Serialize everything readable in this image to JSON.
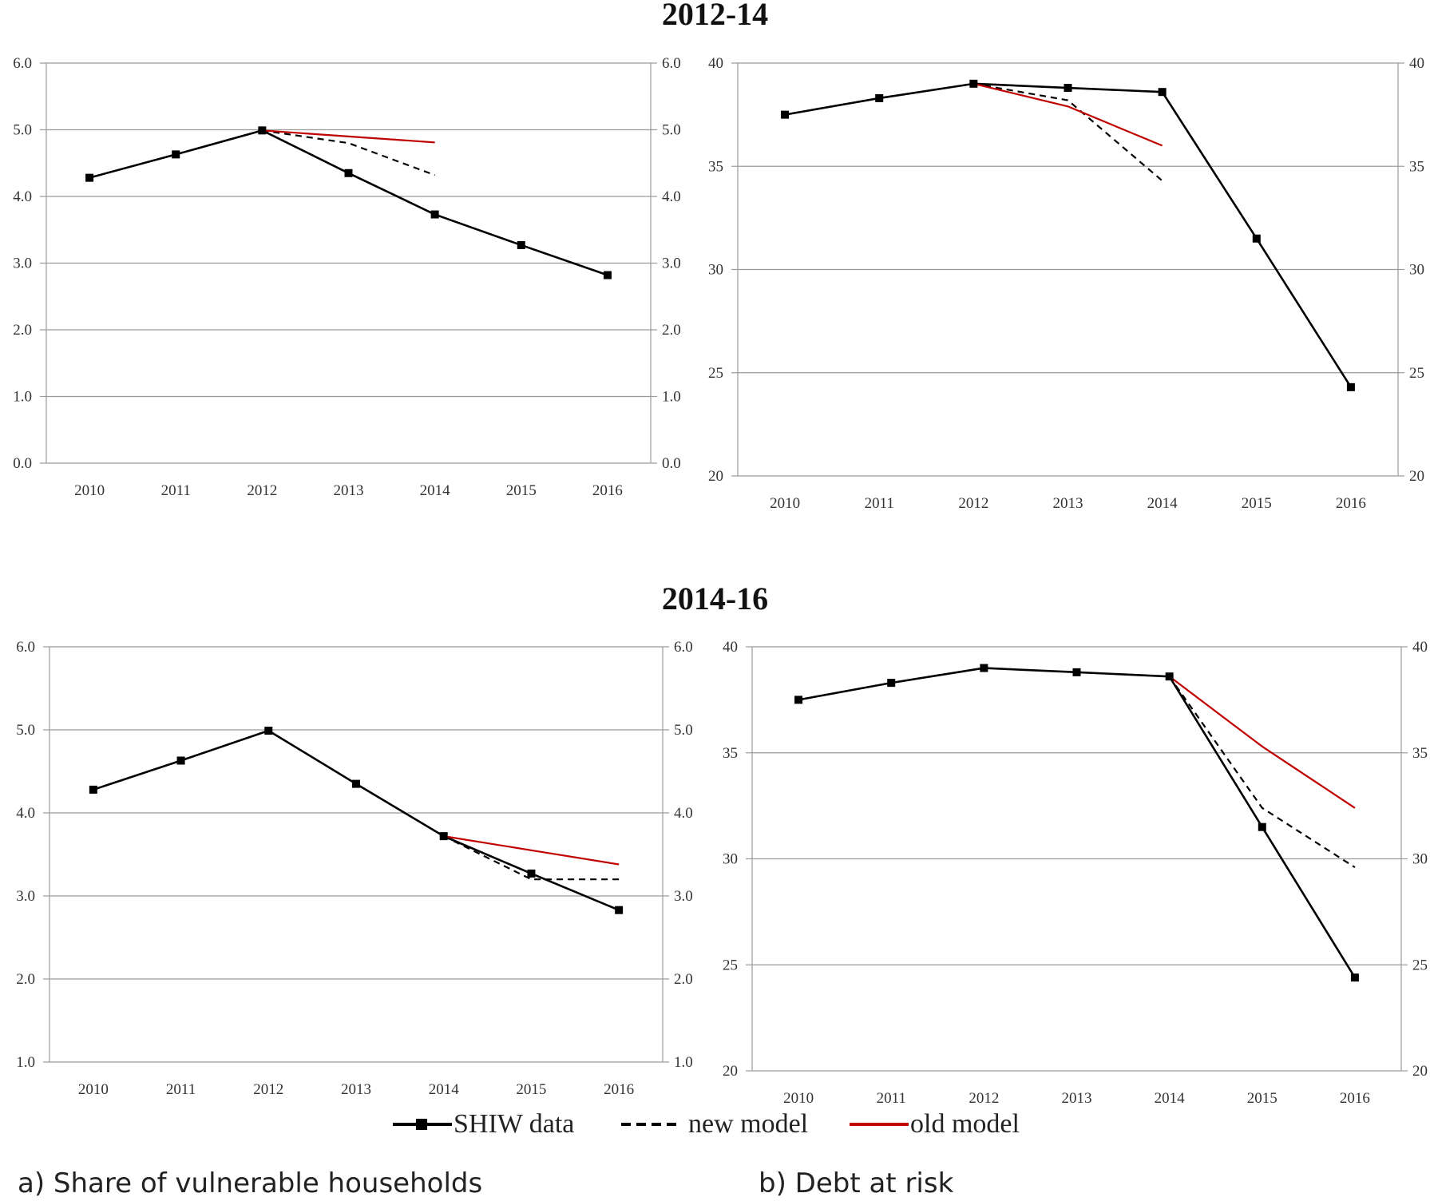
{
  "sections": [
    {
      "title": "2012-14"
    },
    {
      "title": "2014-16"
    }
  ],
  "legend": {
    "shiw": "SHIW data",
    "new_model": "new model",
    "old_model": "old model"
  },
  "captions": {
    "a": "a) Share of vulnerable households",
    "b": "b) Debt at risk"
  },
  "colors": {
    "shiw": "#000000",
    "new_model": "#000000",
    "old_model": "#c00000",
    "grid": "#9a9a9a"
  },
  "chart_data": [
    {
      "id": "a-2012-14",
      "type": "line",
      "x": [
        2010,
        2011,
        2012,
        2013,
        2014,
        2015,
        2016
      ],
      "ylim": [
        0,
        6
      ],
      "yticks": [
        "0.0",
        "1.0",
        "2.0",
        "3.0",
        "4.0",
        "5.0",
        "6.0"
      ],
      "grid": "horizontal",
      "series": [
        {
          "name": "SHIW data",
          "style": "solid-marker",
          "x": [
            2010,
            2011,
            2012,
            2013,
            2014,
            2015,
            2016
          ],
          "values": [
            4.28,
            4.63,
            4.99,
            4.35,
            3.73,
            3.27,
            2.82
          ]
        },
        {
          "name": "new model",
          "style": "dashed",
          "x": [
            2012,
            2013,
            2014
          ],
          "values": [
            4.99,
            4.8,
            4.32
          ]
        },
        {
          "name": "old model",
          "style": "red",
          "x": [
            2012,
            2013,
            2014
          ],
          "values": [
            4.99,
            4.9,
            4.81
          ]
        }
      ]
    },
    {
      "id": "b-2012-14",
      "type": "line",
      "x": [
        2010,
        2011,
        2012,
        2013,
        2014,
        2015,
        2016
      ],
      "ylim": [
        20,
        40
      ],
      "yticks": [
        "20",
        "25",
        "30",
        "35",
        "40"
      ],
      "grid": "horizontal",
      "series": [
        {
          "name": "SHIW data",
          "style": "solid-marker",
          "x": [
            2010,
            2011,
            2012,
            2013,
            2014,
            2015,
            2016
          ],
          "values": [
            37.5,
            38.3,
            39.0,
            38.8,
            38.6,
            31.5,
            24.3
          ]
        },
        {
          "name": "new model",
          "style": "dashed",
          "x": [
            2012,
            2013,
            2014
          ],
          "values": [
            39.0,
            38.2,
            34.3
          ]
        },
        {
          "name": "old model",
          "style": "red",
          "x": [
            2012,
            2013,
            2014
          ],
          "values": [
            39.0,
            37.9,
            36.0
          ]
        }
      ]
    },
    {
      "id": "a-2014-16",
      "type": "line",
      "x": [
        2010,
        2011,
        2012,
        2013,
        2014,
        2015,
        2016
      ],
      "ylim": [
        1,
        6
      ],
      "yticks": [
        "1.0",
        "2.0",
        "3.0",
        "4.0",
        "5.0",
        "6.0"
      ],
      "grid": "horizontal",
      "series": [
        {
          "name": "SHIW data",
          "style": "solid-marker",
          "x": [
            2010,
            2011,
            2012,
            2013,
            2014,
            2015,
            2016
          ],
          "values": [
            4.28,
            4.63,
            4.99,
            4.35,
            3.72,
            3.27,
            2.83
          ]
        },
        {
          "name": "new model",
          "style": "dashed",
          "x": [
            2014,
            2015,
            2016
          ],
          "values": [
            3.72,
            3.2,
            3.2
          ]
        },
        {
          "name": "old model",
          "style": "red",
          "x": [
            2014,
            2015,
            2016
          ],
          "values": [
            3.72,
            3.55,
            3.38
          ]
        }
      ]
    },
    {
      "id": "b-2014-16",
      "type": "line",
      "x": [
        2010,
        2011,
        2012,
        2013,
        2014,
        2015,
        2016
      ],
      "ylim": [
        20,
        40
      ],
      "yticks": [
        "20",
        "25",
        "30",
        "35",
        "40"
      ],
      "grid": "horizontal",
      "series": [
        {
          "name": "SHIW data",
          "style": "solid-marker",
          "x": [
            2010,
            2011,
            2012,
            2013,
            2014,
            2015,
            2016
          ],
          "values": [
            37.5,
            38.3,
            39.0,
            38.8,
            38.6,
            31.5,
            24.4
          ]
        },
        {
          "name": "new model",
          "style": "dashed",
          "x": [
            2014,
            2015,
            2016
          ],
          "values": [
            38.6,
            32.4,
            29.6
          ]
        },
        {
          "name": "old model",
          "style": "red",
          "x": [
            2014,
            2015,
            2016
          ],
          "values": [
            38.6,
            35.3,
            32.4
          ]
        }
      ]
    }
  ]
}
